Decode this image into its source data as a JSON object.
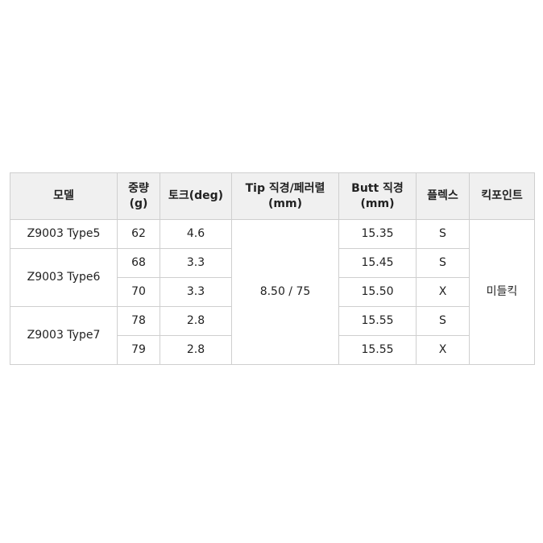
{
  "headers": [
    "모델",
    "중량\n(g)",
    "토크(deg)",
    "Tip 직경/페러렬\n(mm)",
    "Butt 직경\n(mm)",
    "플렉스",
    "킥포인트"
  ],
  "header_lines": [
    [
      "모델"
    ],
    [
      "중량",
      "(g)"
    ],
    [
      "토크(deg)"
    ],
    [
      "Tip 직경/페러렬",
      "(mm)"
    ],
    [
      "Butt 직경",
      "(mm)"
    ],
    [
      "플렉스"
    ],
    [
      "킥포인트"
    ]
  ],
  "rows": [
    {
      "model": "Z9003 Type5",
      "weight": "62",
      "torque": "4.6",
      "butt": "15.35",
      "flex": "S"
    },
    {
      "model": "Z9003 Type6",
      "weight": "68",
      "torque": "3.3",
      "butt": "15.45",
      "flex": "S"
    },
    {
      "model": "",
      "weight": "70",
      "torque": "3.3",
      "butt": "15.50",
      "flex": "X"
    },
    {
      "model": "Z9003 Type7",
      "weight": "78",
      "torque": "2.8",
      "butt": "15.55",
      "flex": "S"
    },
    {
      "model": "",
      "weight": "79",
      "torque": "2.8",
      "butt": "15.55",
      "flex": "X"
    }
  ],
  "tip": "8.50 / 75",
  "kickpoint": "미들킥"
}
